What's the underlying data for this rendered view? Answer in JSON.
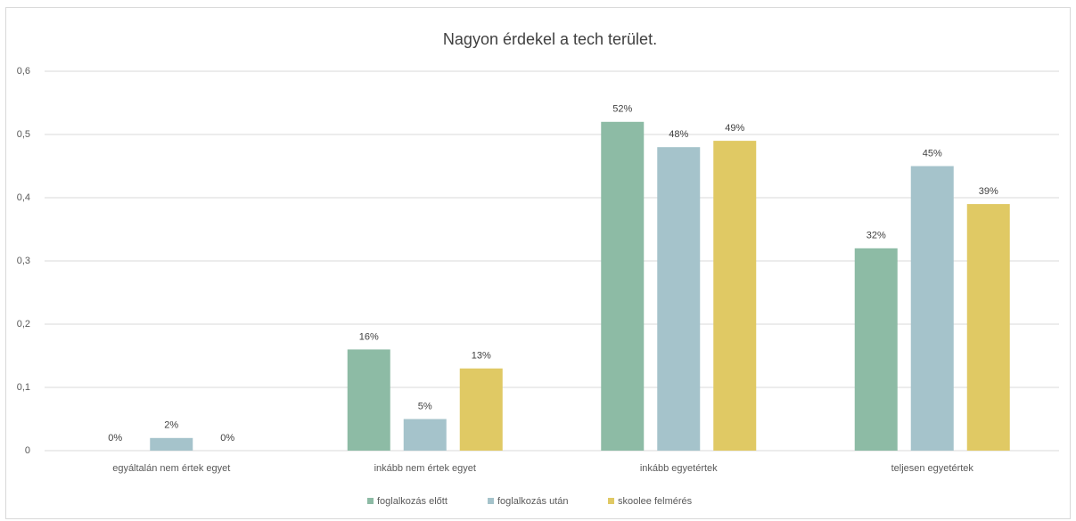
{
  "chart_data": {
    "type": "bar",
    "title": "Nagyon érdekel a tech terület.",
    "categories": [
      "egyáltalán nem értek egyet",
      "inkább nem értek egyet",
      "inkább egyetértek",
      "teljesen egyetértek"
    ],
    "series": [
      {
        "name": "foglalkozás előtt",
        "color": "#8dbba5",
        "values": [
          0,
          0.16,
          0.52,
          0.32
        ],
        "value_labels": [
          "0%",
          "16%",
          "52%",
          "32%"
        ]
      },
      {
        "name": "foglalkozás után",
        "color": "#a5c3cb",
        "values": [
          0.02,
          0.05,
          0.48,
          0.45
        ],
        "value_labels": [
          "2%",
          "5%",
          "48%",
          "45%"
        ]
      },
      {
        "name": "skoolee felmérés",
        "color": "#e0c964",
        "values": [
          0,
          0.13,
          0.49,
          0.39
        ],
        "value_labels": [
          "0%",
          "13%",
          "49%",
          "39%"
        ]
      }
    ],
    "ylim": [
      0,
      0.6
    ],
    "yticks": [
      0,
      {
        "value": 0.1,
        "label": "0,1"
      },
      {
        "value": 0.2,
        "label": "0,2"
      },
      {
        "value": 0.3,
        "label": "0,3"
      },
      {
        "value": 0.4,
        "label": "0,4"
      },
      {
        "value": 0.5,
        "label": "0,5"
      },
      {
        "value": 0.6,
        "label": "0,6"
      }
    ],
    "grid": true,
    "legend": "bottom"
  }
}
